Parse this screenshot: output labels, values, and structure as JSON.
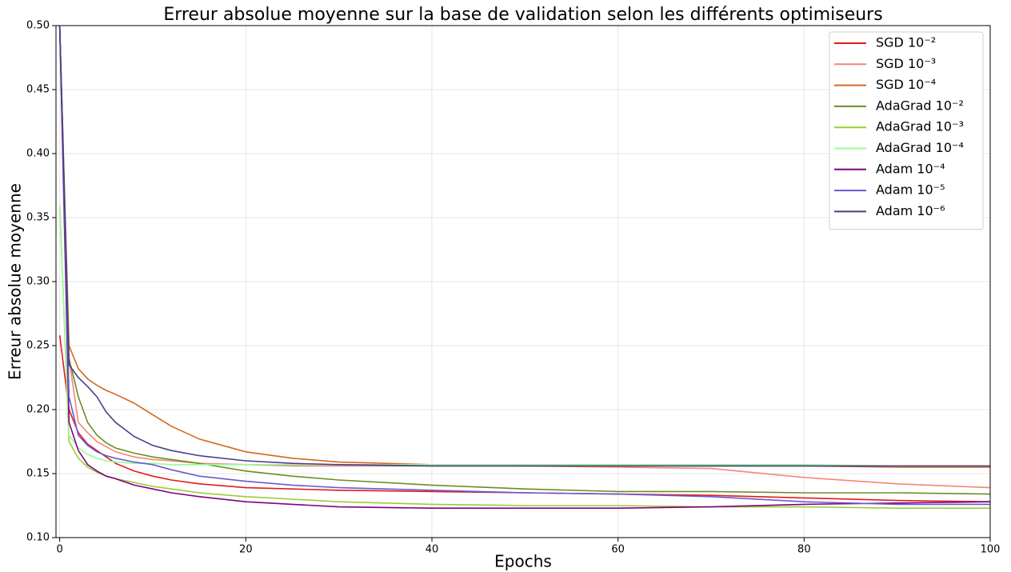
{
  "chart_data": {
    "type": "line",
    "title": "Erreur absolue moyenne sur la base de validation selon les différents optimiseurs",
    "x_label": "Epochs",
    "y_label": "Erreur absolue moyenne",
    "x": [
      0,
      1,
      2,
      3,
      4,
      5,
      6,
      8,
      10,
      12,
      15,
      20,
      25,
      30,
      40,
      50,
      60,
      70,
      80,
      90,
      100
    ],
    "series": [
      {
        "name": "SGD 10⁻²",
        "color": "#e41a1c",
        "values": [
          0.258,
          0.2,
          0.182,
          0.173,
          0.168,
          0.163,
          0.158,
          0.152,
          0.148,
          0.145,
          0.142,
          0.139,
          0.138,
          0.137,
          0.136,
          0.135,
          0.134,
          0.133,
          0.131,
          0.129,
          0.128
        ]
      },
      {
        "name": "SGD 10⁻³",
        "color": "#f4867a",
        "values": [
          0.5,
          0.24,
          0.19,
          0.182,
          0.175,
          0.171,
          0.167,
          0.163,
          0.161,
          0.16,
          0.158,
          0.157,
          0.156,
          0.156,
          0.156,
          0.156,
          0.155,
          0.154,
          0.147,
          0.142,
          0.139
        ]
      },
      {
        "name": "SGD 10⁻⁴",
        "color": "#d2691e",
        "values": [
          0.5,
          0.25,
          0.232,
          0.224,
          0.219,
          0.215,
          0.212,
          0.205,
          0.196,
          0.187,
          0.177,
          0.167,
          0.162,
          0.159,
          0.157,
          0.156,
          0.156,
          0.156,
          0.156,
          0.155,
          0.155
        ]
      },
      {
        "name": "AdaGrad 10⁻²",
        "color": "#6b8e23",
        "values": [
          0.5,
          0.24,
          0.21,
          0.19,
          0.18,
          0.174,
          0.17,
          0.166,
          0.163,
          0.161,
          0.158,
          0.152,
          0.148,
          0.145,
          0.141,
          0.138,
          0.136,
          0.136,
          0.135,
          0.135,
          0.134
        ]
      },
      {
        "name": "AdaGrad 10⁻³",
        "color": "#9acd32",
        "values": [
          0.36,
          0.175,
          0.162,
          0.155,
          0.151,
          0.148,
          0.146,
          0.143,
          0.14,
          0.138,
          0.135,
          0.132,
          0.13,
          0.128,
          0.126,
          0.125,
          0.125,
          0.124,
          0.124,
          0.123,
          0.123
        ]
      },
      {
        "name": "AdaGrad 10⁻⁴",
        "color": "#98fb98",
        "values": [
          0.36,
          0.18,
          0.17,
          0.165,
          0.162,
          0.16,
          0.159,
          0.158,
          0.158,
          0.157,
          0.157,
          0.157,
          0.157,
          0.157,
          0.157,
          0.157,
          0.157,
          0.157,
          0.157,
          0.156,
          0.156
        ]
      },
      {
        "name": "Adam 10⁻⁴",
        "color": "#800080",
        "values": [
          0.5,
          0.19,
          0.168,
          0.157,
          0.152,
          0.148,
          0.146,
          0.141,
          0.138,
          0.135,
          0.132,
          0.128,
          0.126,
          0.124,
          0.123,
          0.123,
          0.123,
          0.124,
          0.126,
          0.127,
          0.128
        ]
      },
      {
        "name": "Adam 10⁻⁵",
        "color": "#6a5acd",
        "values": [
          0.5,
          0.21,
          0.18,
          0.172,
          0.167,
          0.164,
          0.162,
          0.159,
          0.157,
          0.153,
          0.148,
          0.144,
          0.141,
          0.139,
          0.137,
          0.135,
          0.134,
          0.132,
          0.128,
          0.126,
          0.126
        ]
      },
      {
        "name": "Adam 10⁻⁶",
        "color": "#483d8b",
        "values": [
          0.5,
          0.235,
          0.225,
          0.218,
          0.21,
          0.198,
          0.19,
          0.179,
          0.172,
          0.168,
          0.164,
          0.16,
          0.158,
          0.157,
          0.156,
          0.156,
          0.156,
          0.156,
          0.156,
          0.156,
          0.156
        ]
      }
    ],
    "xlim": [
      -0.4,
      100
    ],
    "ylim": [
      0.1,
      0.5
    ],
    "xticks": [
      0,
      20,
      40,
      60,
      80,
      100
    ],
    "yticks": [
      {
        "value": 0.1,
        "label": "0.10"
      },
      {
        "value": 0.15,
        "label": "0.15"
      },
      {
        "value": 0.2,
        "label": "0.20"
      },
      {
        "value": 0.25,
        "label": "0.25"
      },
      {
        "value": 0.3,
        "label": "0.30"
      },
      {
        "value": 0.35,
        "label": "0.35"
      },
      {
        "value": 0.4,
        "label": "0.40"
      },
      {
        "value": 0.45,
        "label": "0.45"
      },
      {
        "value": 0.5,
        "label": "0.50"
      }
    ],
    "grid": true,
    "legend": "upper right"
  }
}
